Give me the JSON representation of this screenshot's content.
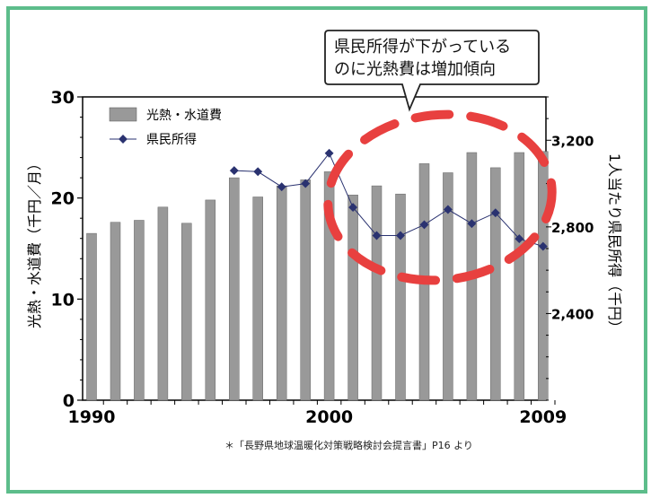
{
  "chart_data": {
    "type": "bar+line",
    "years": [
      1990,
      1991,
      1992,
      1993,
      1994,
      1995,
      1996,
      1997,
      1998,
      1999,
      2000,
      2001,
      2002,
      2003,
      2004,
      2005,
      2006,
      2007,
      2008,
      2009
    ],
    "series": [
      {
        "name": "光熱・水道費",
        "type": "bar",
        "axis": "left",
        "color": "#999999",
        "values": [
          16.5,
          17.6,
          17.8,
          19.1,
          17.5,
          19.8,
          22.0,
          20.1,
          21.2,
          21.8,
          22.6,
          20.3,
          21.2,
          20.4,
          23.4,
          22.5,
          24.5,
          23.0,
          24.5,
          24.6
        ]
      },
      {
        "name": "県民所得",
        "type": "line",
        "axis": "right",
        "color": "#2a3270",
        "start_index": 6,
        "values": [
          3060,
          3055,
          2985,
          3000,
          3140,
          2890,
          2760,
          2760,
          2810,
          2880,
          2815,
          2865,
          2745,
          2710
        ]
      }
    ],
    "left_axis": {
      "label": "光熱・水道費（千円／月）",
      "min": 0,
      "max": 30,
      "ticks": [
        0,
        10,
        20,
        30
      ],
      "tick_labels": [
        "0",
        "10",
        "20",
        "30"
      ]
    },
    "right_axis": {
      "label": "1人当たり県民所得（千円）",
      "min": 2000,
      "max": 3400,
      "ticks": [
        2400,
        2800,
        3200
      ],
      "tick_labels": [
        "2,400",
        "2,800",
        "3,200"
      ]
    },
    "x_axis": {
      "tick_labels": [
        "1990",
        "2000",
        "2009"
      ],
      "tick_years": [
        1990,
        2000,
        2009
      ]
    },
    "legend": {
      "placement": "top-left",
      "bar_label": "光熱・水道費",
      "line_label": "県民所得"
    },
    "callout": {
      "line1": "県民所得が下がっている",
      "line2": "のに光熱費は増加傾向"
    },
    "highlight": {
      "kind": "dashed-ellipse",
      "color": "#e8403f",
      "covers_years": [
        2000,
        2009
      ]
    },
    "source": "＊「長野県地球温暖化対策戦略検討会提言書」P16 より"
  }
}
